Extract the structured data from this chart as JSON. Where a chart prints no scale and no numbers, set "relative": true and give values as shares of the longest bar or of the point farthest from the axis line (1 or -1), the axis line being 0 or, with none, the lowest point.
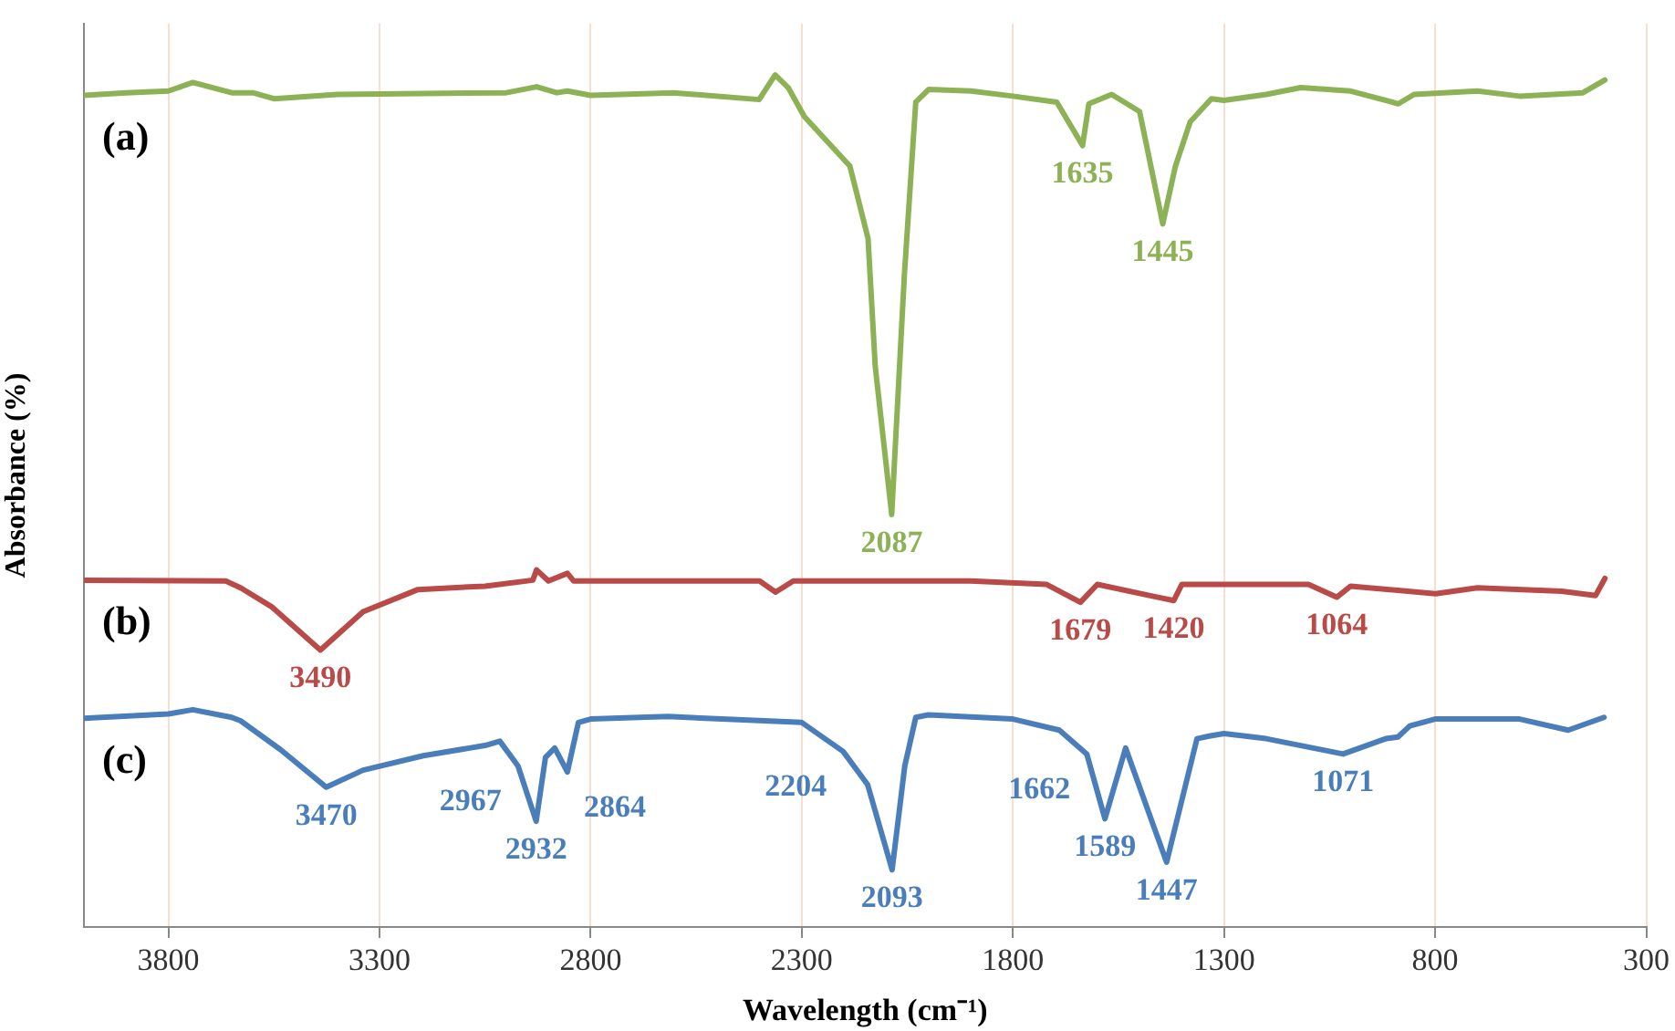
{
  "chart_data": {
    "type": "line",
    "relative": true,
    "xlabel": "Wavelength (cm⁻¹)",
    "ylabel": "Absorbance (%)",
    "xlim": [
      4000,
      300
    ],
    "xticks": [
      3800,
      3300,
      2800,
      2300,
      1800,
      1300,
      800,
      300
    ],
    "grid": "x",
    "legend": false,
    "tick_labels": "x",
    "marker": "none",
    "line_style": "solid",
    "series": [
      {
        "name": "(a)",
        "color": "#8db255",
        "x": [
          4000,
          3900,
          3800,
          3742,
          3650,
          3600,
          3550,
          3400,
          3000,
          2928,
          2880,
          2855,
          2800,
          2604,
          2401,
          2363,
          2332,
          2294,
          2186,
          2143,
          2126,
          2087,
          2057,
          2030,
          1999,
          1899,
          1800,
          1696,
          1635,
          1620,
          1566,
          1500,
          1445,
          1415,
          1380,
          1330,
          1300,
          1200,
          1118,
          1000,
          887,
          850,
          700,
          600,
          450,
          398
        ],
        "values": [
          0.976,
          0.979,
          0.981,
          0.991,
          0.979,
          0.979,
          0.972,
          0.977,
          0.979,
          0.986,
          0.979,
          0.981,
          0.976,
          0.979,
          0.971,
          1.0,
          0.985,
          0.951,
          0.893,
          0.808,
          0.658,
          0.484,
          0.765,
          0.968,
          0.983,
          0.981,
          0.975,
          0.968,
          0.917,
          0.966,
          0.977,
          0.957,
          0.825,
          0.893,
          0.945,
          0.972,
          0.97,
          0.977,
          0.985,
          0.981,
          0.966,
          0.977,
          0.981,
          0.975,
          0.979,
          0.994
        ]
      },
      {
        "name": "(b)",
        "color": "#b94a48",
        "x": [
          4000,
          3664,
          3629,
          3556,
          3440,
          3339,
          3209,
          3050,
          2937,
          2928,
          2900,
          2855,
          2840,
          2400,
          2362,
          2320,
          1900,
          1720,
          1640,
          1600,
          1419,
          1400,
          1100,
          1033,
          1000,
          799,
          700,
          500,
          420,
          398
        ],
        "values": [
          0.407,
          0.406,
          0.398,
          0.376,
          0.325,
          0.37,
          0.396,
          0.4,
          0.407,
          0.419,
          0.406,
          0.415,
          0.406,
          0.406,
          0.393,
          0.406,
          0.406,
          0.402,
          0.381,
          0.402,
          0.383,
          0.402,
          0.402,
          0.387,
          0.4,
          0.391,
          0.398,
          0.394,
          0.389,
          0.409
        ]
      },
      {
        "name": "(c)",
        "color": "#4a7ebb",
        "x": [
          4000,
          3800,
          3742,
          3650,
          3629,
          3534,
          3426,
          3339,
          3196,
          3050,
          3015,
          2972,
          2929,
          2907,
          2885,
          2855,
          2829,
          2800,
          2617,
          2300,
          2202,
          2144,
          2086,
          2056,
          2030,
          2000,
          1800,
          1690,
          1625,
          1582,
          1533,
          1436,
          1364,
          1335,
          1300,
          1200,
          1018,
          917,
          888,
          860,
          800,
          600,
          485,
          400
        ],
        "values": [
          0.245,
          0.25,
          0.255,
          0.246,
          0.242,
          0.208,
          0.164,
          0.184,
          0.201,
          0.213,
          0.218,
          0.189,
          0.124,
          0.199,
          0.21,
          0.182,
          0.24,
          0.244,
          0.247,
          0.24,
          0.206,
          0.167,
          0.067,
          0.189,
          0.246,
          0.249,
          0.244,
          0.231,
          0.203,
          0.127,
          0.21,
          0.076,
          0.221,
          0.224,
          0.227,
          0.221,
          0.203,
          0.221,
          0.223,
          0.236,
          0.244,
          0.244,
          0.231,
          0.246
        ]
      }
    ],
    "annotations": [
      {
        "text": "2087",
        "x": 2087,
        "y": 0.484
      },
      {
        "text": "1635",
        "x": 1635,
        "y": 0.917
      },
      {
        "text": "1445",
        "x": 1445,
        "y": 0.825
      },
      {
        "text": "3490",
        "x": 3440,
        "y": 0.325
      },
      {
        "text": "1679",
        "x": 1640,
        "y": 0.381
      },
      {
        "text": "1420",
        "x": 1419,
        "y": 0.383
      },
      {
        "text": "1064",
        "x": 1033,
        "y": 0.387
      },
      {
        "text": "3470",
        "x": 3426,
        "y": 0.164
      },
      {
        "text": "2932",
        "x": 2929,
        "y": 0.124
      },
      {
        "text": "2967",
        "x": 2972,
        "y": 0.189
      },
      {
        "text": "2864",
        "x": 2855,
        "y": 0.182
      },
      {
        "text": "2204",
        "x": 2202,
        "y": 0.206
      },
      {
        "text": "2093",
        "x": 2086,
        "y": 0.067
      },
      {
        "text": "1662",
        "x": 1625,
        "y": 0.203
      },
      {
        "text": "1589",
        "x": 1582,
        "y": 0.127
      },
      {
        "text": "1447",
        "x": 1436,
        "y": 0.076
      },
      {
        "text": "1071",
        "x": 1018,
        "y": 0.203
      }
    ]
  }
}
